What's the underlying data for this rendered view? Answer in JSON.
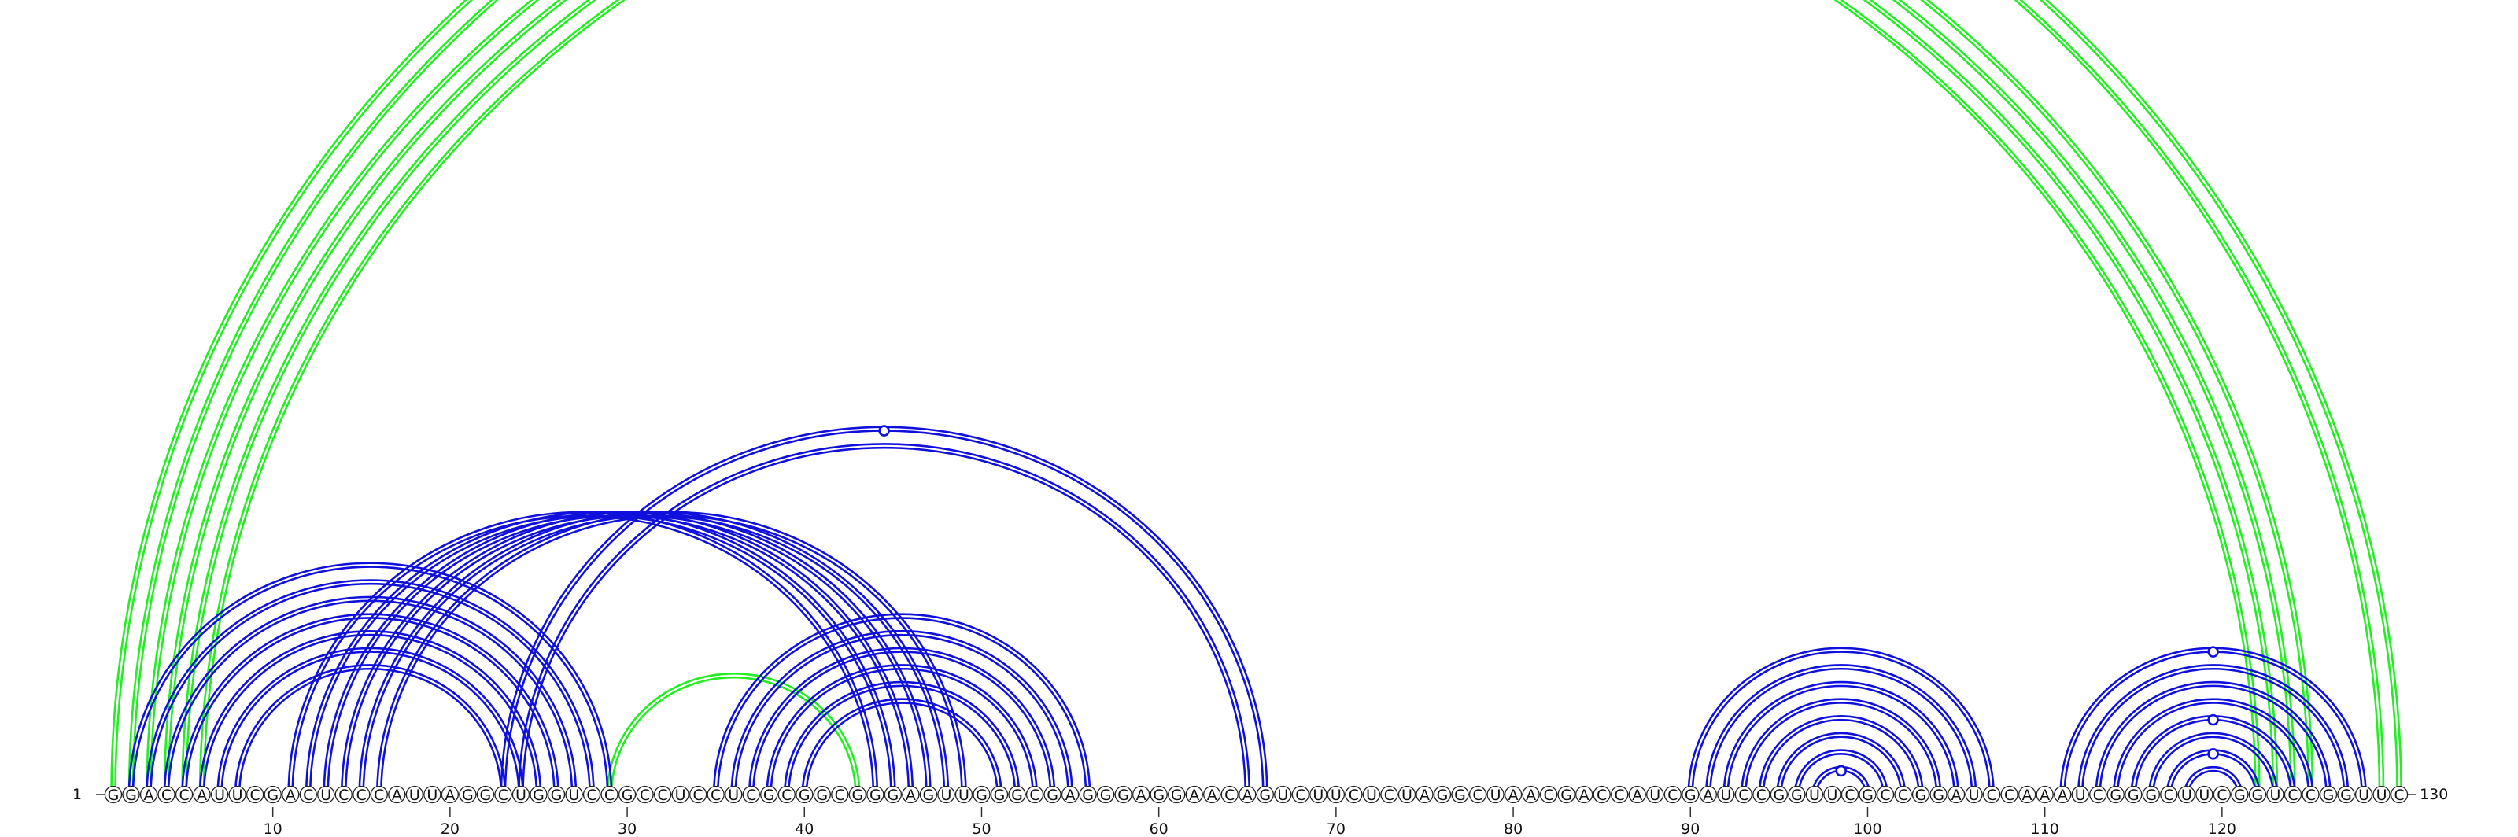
{
  "sequence": "GGACCAUUCGACUCCCAUUAGGCUGGUCCGCCUCCUCGCGGCGGGAGUUGGGCGAGGGAGGAACAGUCUUCUCUAGGCUAACGACCAUCGAUCCGGUUCGCCGGAUCCAAAUCGGGCUUCGGUCCGGUUC",
  "start_label": "1",
  "end_label": "130",
  "ticks": [
    "10",
    "20",
    "30",
    "40",
    "50",
    "60",
    "70",
    "80",
    "90",
    "100",
    "110",
    "120"
  ],
  "colors": {
    "blue": "#1010dd",
    "green": "#22ee22"
  },
  "arc_groups": [
    {
      "color": "green",
      "pairs": [
        [
          1,
          130
        ],
        [
          2,
          129
        ],
        [
          3,
          125
        ],
        [
          4,
          124
        ],
        [
          5,
          123
        ],
        [
          6,
          122
        ]
      ]
    },
    {
      "color": "green",
      "pairs": [
        [
          29,
          43
        ]
      ]
    },
    {
      "color": "blue",
      "pairs": [
        [
          2,
          29
        ],
        [
          3,
          28
        ],
        [
          4,
          27
        ],
        [
          5,
          26
        ],
        [
          6,
          25
        ],
        [
          7,
          24
        ],
        [
          8,
          23
        ]
      ]
    },
    {
      "color": "blue",
      "pairs": [
        [
          11,
          44
        ],
        [
          12,
          45
        ],
        [
          13,
          46
        ],
        [
          14,
          47
        ],
        [
          15,
          48
        ],
        [
          16,
          49
        ]
      ]
    },
    {
      "color": "blue",
      "pairs": [
        [
          23,
          66
        ],
        [
          24,
          65
        ]
      ]
    },
    {
      "color": "blue",
      "pairs": [
        [
          35,
          56
        ],
        [
          36,
          55
        ],
        [
          37,
          54
        ],
        [
          38,
          53
        ],
        [
          39,
          52
        ],
        [
          40,
          51
        ]
      ]
    },
    {
      "color": "blue",
      "pairs": [
        [
          90,
          107
        ],
        [
          91,
          106
        ],
        [
          92,
          105
        ],
        [
          93,
          104
        ],
        [
          94,
          103
        ],
        [
          95,
          102
        ],
        [
          96,
          101
        ],
        [
          97,
          100
        ]
      ]
    },
    {
      "color": "blue",
      "pairs": [
        [
          111,
          128
        ],
        [
          112,
          127
        ],
        [
          113,
          126
        ],
        [
          114,
          125
        ],
        [
          115,
          124
        ],
        [
          116,
          123
        ],
        [
          117,
          122
        ],
        [
          118,
          121
        ]
      ]
    }
  ],
  "markers": [
    {
      "color": "green",
      "pair": [
        1,
        130
      ]
    },
    {
      "color": "blue",
      "pair": [
        23,
        66
      ]
    },
    {
      "color": "blue",
      "pair": [
        97,
        100
      ]
    },
    {
      "color": "blue",
      "pair": [
        111,
        128
      ]
    },
    {
      "color": "blue",
      "pair": [
        115,
        124
      ]
    },
    {
      "color": "blue",
      "pair": [
        117,
        122
      ]
    }
  ]
}
